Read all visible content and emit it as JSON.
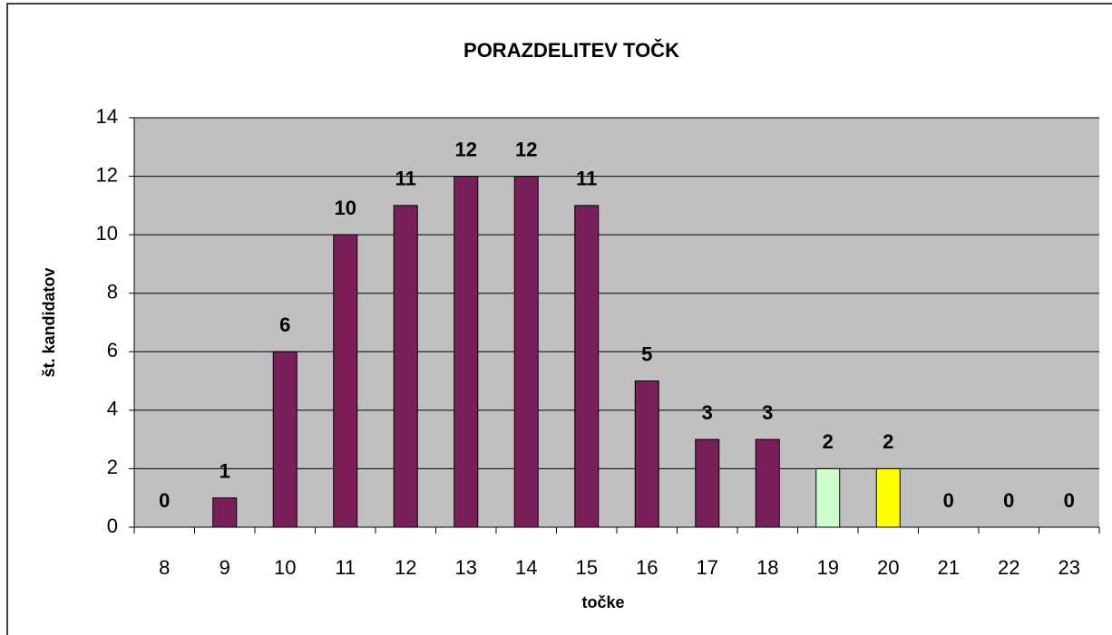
{
  "chart_data": {
    "type": "bar",
    "title": "PORAZDELITEV TOČK",
    "x_label": "točke",
    "y_label": "št. kandidatov",
    "categories": [
      "8",
      "9",
      "10",
      "11",
      "12",
      "13",
      "14",
      "15",
      "16",
      "17",
      "18",
      "19",
      "20",
      "21",
      "22",
      "23"
    ],
    "values": [
      0,
      1,
      6,
      10,
      11,
      12,
      12,
      11,
      5,
      3,
      3,
      2,
      2,
      0,
      0,
      0
    ],
    "colors": [
      "#7b1f5a",
      "#7b1f5a",
      "#7b1f5a",
      "#7b1f5a",
      "#7b1f5a",
      "#7b1f5a",
      "#7b1f5a",
      "#7b1f5a",
      "#7b1f5a",
      "#7b1f5a",
      "#7b1f5a",
      "#ccffcc",
      "#ffff00",
      "#7b1f5a",
      "#7b1f5a",
      "#7b1f5a"
    ],
    "ylim": [
      0,
      14
    ],
    "yticks": [
      0,
      2,
      4,
      6,
      8,
      10,
      12,
      14
    ],
    "grid": true,
    "plot_background": "#c0c0c0"
  }
}
